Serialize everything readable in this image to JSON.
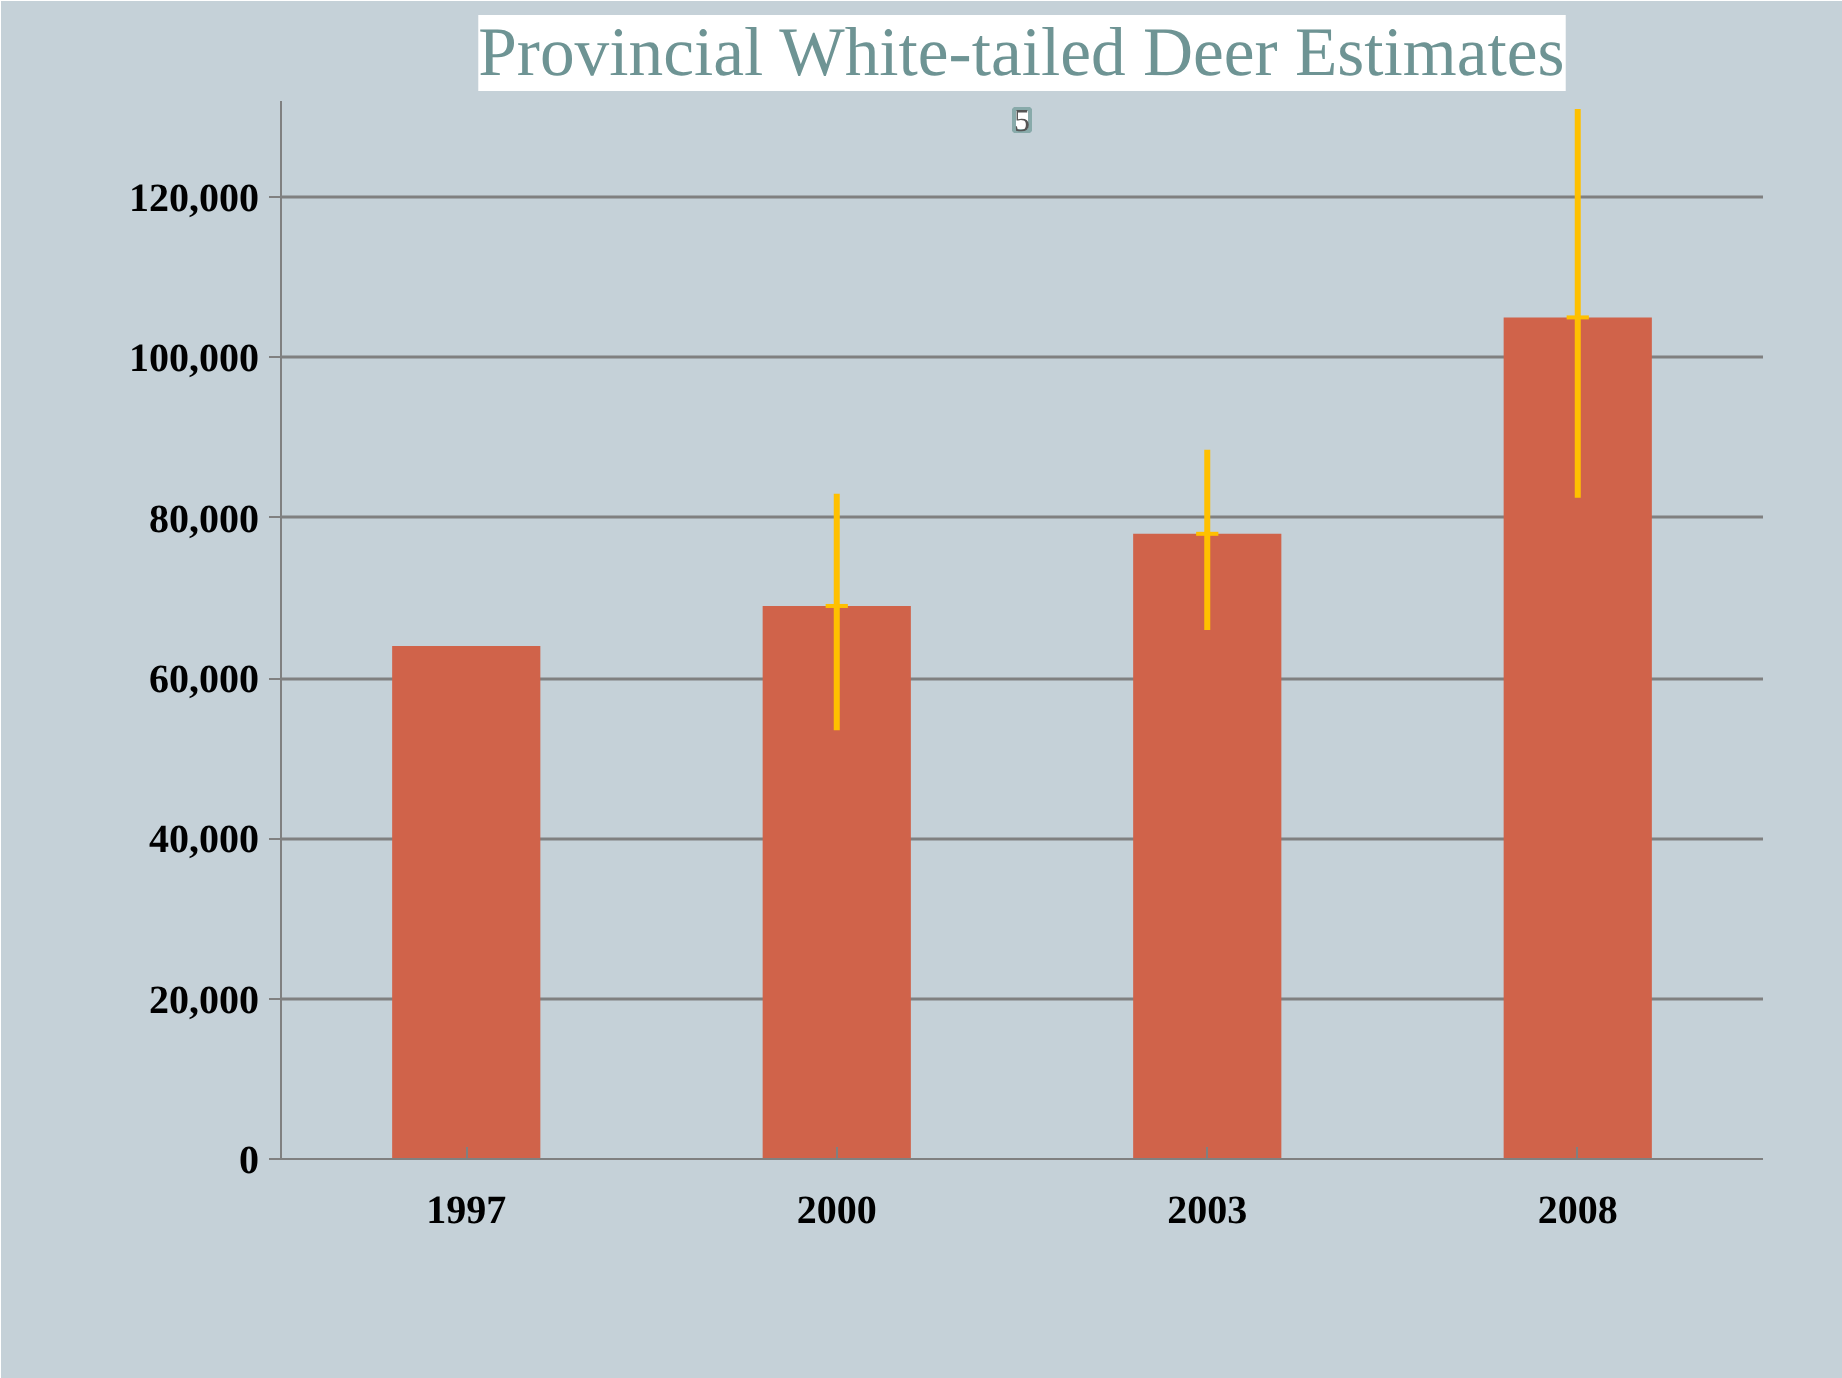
{
  "chart_data": {
    "type": "bar",
    "title": "Provincial White-tailed Deer Estimates",
    "categories": [
      "1997",
      "2000",
      "2003",
      "2008"
    ],
    "values": [
      64000,
      69000,
      78000,
      105000
    ],
    "errors": [
      null,
      [
        53500,
        83000
      ],
      [
        66000,
        88500
      ],
      [
        82500,
        131000
      ]
    ],
    "color": "#d0634a",
    "ylim": [
      0,
      132000
    ],
    "yticks": [
      {
        "value": 0,
        "label": "0"
      },
      {
        "value": 20000,
        "label": "20,000"
      },
      {
        "value": 40000,
        "label": "40,000"
      },
      {
        "value": 60000,
        "label": "60,000"
      },
      {
        "value": 80000,
        "label": "80,000"
      },
      {
        "value": 100000,
        "label": "100,000"
      },
      {
        "value": 120000,
        "label": "120,000"
      }
    ],
    "grid": "y",
    "annotations": [
      "5"
    ]
  }
}
